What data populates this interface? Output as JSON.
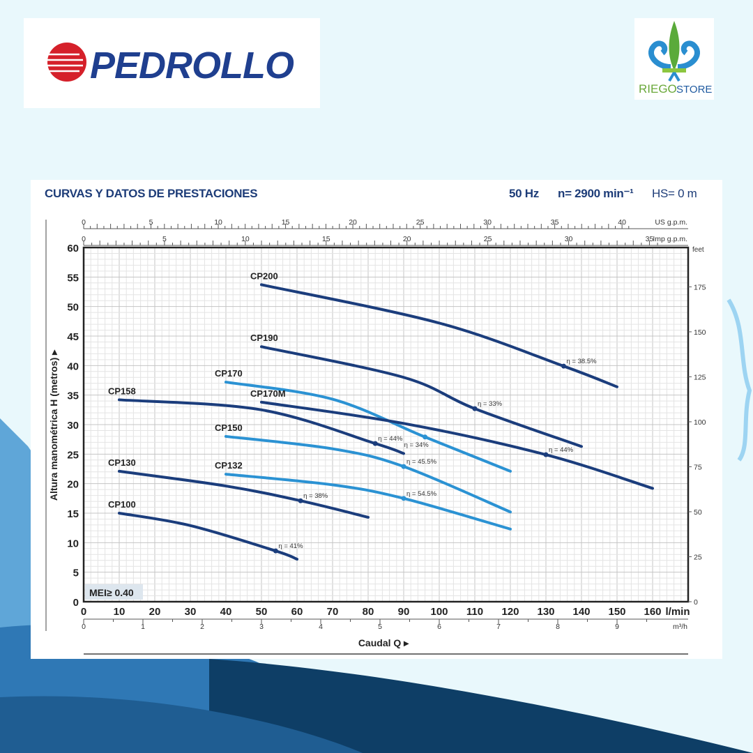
{
  "logos": {
    "left": "PEDROLLO",
    "right": "RIEGO STORE"
  },
  "header": {
    "title": "CURVAS Y DATOS DE PRESTACIONES",
    "frequency": "50 Hz",
    "speed": "n= 2900 min⁻¹",
    "hs": "HS= 0 m"
  },
  "colors": {
    "dark_curve": "#1b3d7c",
    "light_curve": "#2b92d3",
    "header_text": "#1d3c78",
    "background": "#e9f8fc"
  },
  "chart_data": {
    "type": "line",
    "title": "CURVAS Y DATOS DE PRESTACIONES",
    "xlabel": "Caudal Q",
    "ylabel": "Altura manométrica H (metros)",
    "xlim": [
      0,
      170
    ],
    "ylim": [
      0,
      60
    ],
    "grid": true,
    "x_unit": "l/min",
    "x_ticks": [
      0,
      10,
      20,
      30,
      40,
      50,
      60,
      70,
      80,
      90,
      100,
      110,
      120,
      130,
      140,
      150,
      160
    ],
    "y_ticks": [
      0,
      5,
      10,
      15,
      20,
      25,
      30,
      35,
      40,
      45,
      50,
      55,
      60
    ],
    "secondary_axes": {
      "us_gpm": {
        "label": "US g.p.m.",
        "ticks": [
          0,
          5,
          10,
          15,
          20,
          25,
          30,
          35,
          40
        ]
      },
      "imp_gpm": {
        "label": "Imp g.p.m.",
        "ticks": [
          0,
          5,
          10,
          15,
          20,
          25,
          30,
          35
        ]
      },
      "m3h": {
        "label": "m³/h",
        "ticks": [
          0,
          1,
          2,
          3,
          4,
          5,
          6,
          7,
          8,
          9
        ]
      },
      "feet": {
        "label": "feet",
        "ticks": [
          0,
          25,
          50,
          75,
          100,
          125,
          150,
          175
        ]
      }
    },
    "badge": "MEI≥ 0.40",
    "series": [
      {
        "name": "CP200",
        "tone": "dark",
        "points": [
          [
            50,
            53.7
          ],
          [
            100,
            47.2
          ],
          [
            135,
            39.9
          ],
          [
            150,
            36.4
          ]
        ],
        "efficiency": {
          "label": "η = 38.5%",
          "at": [
            135,
            39.9
          ]
        }
      },
      {
        "name": "CP190",
        "tone": "dark",
        "points": [
          [
            50,
            43.2
          ],
          [
            90,
            38.0
          ],
          [
            110,
            32.7
          ],
          [
            140,
            26.3
          ]
        ],
        "efficiency": {
          "label": "η = 33%",
          "at": [
            110,
            32.7
          ]
        }
      },
      {
        "name": "CP170",
        "tone": "light",
        "points": [
          [
            40,
            37.2
          ],
          [
            70,
            34.3
          ],
          [
            96,
            27.9
          ],
          [
            120,
            22.1
          ]
        ],
        "efficiency": {
          "label": "η = 34%",
          "at": [
            96,
            27.9
          ]
        }
      },
      {
        "name": "CP170M",
        "tone": "dark",
        "points": [
          [
            50,
            33.8
          ],
          [
            90,
            30.2
          ],
          [
            130,
            24.9
          ],
          [
            160,
            19.2
          ]
        ],
        "efficiency": {
          "label": "η = 44%",
          "at": [
            130,
            24.9
          ]
        }
      },
      {
        "name": "CP158",
        "tone": "dark",
        "points": [
          [
            10,
            34.2
          ],
          [
            50,
            32.5
          ],
          [
            82,
            26.8
          ],
          [
            90,
            25.1
          ]
        ],
        "efficiency": {
          "label": "η = 44%",
          "at": [
            82,
            26.8
          ]
        }
      },
      {
        "name": "CP150",
        "tone": "light",
        "points": [
          [
            40,
            28.0
          ],
          [
            70,
            25.9
          ],
          [
            90,
            22.9
          ],
          [
            120,
            15.2
          ]
        ],
        "efficiency": {
          "label": "η = 45.5%",
          "at": [
            90,
            22.9
          ]
        }
      },
      {
        "name": "CP132",
        "tone": "light",
        "points": [
          [
            40,
            21.6
          ],
          [
            70,
            19.8
          ],
          [
            90,
            17.5
          ],
          [
            120,
            12.3
          ]
        ],
        "efficiency": {
          "label": "η = 54.5%",
          "at": [
            90,
            17.5
          ]
        }
      },
      {
        "name": "CP130",
        "tone": "dark",
        "points": [
          [
            10,
            22.1
          ],
          [
            40,
            19.6
          ],
          [
            61,
            17.1
          ],
          [
            80,
            14.3
          ]
        ],
        "efficiency": {
          "label": "η = 38%",
          "at": [
            61,
            17.1
          ]
        }
      },
      {
        "name": "CP100",
        "tone": "dark",
        "points": [
          [
            10,
            15.0
          ],
          [
            30,
            12.9
          ],
          [
            54,
            8.6
          ],
          [
            60,
            7.2
          ]
        ],
        "efficiency": {
          "label": "η = 41%",
          "at": [
            54,
            8.6
          ]
        }
      }
    ]
  }
}
